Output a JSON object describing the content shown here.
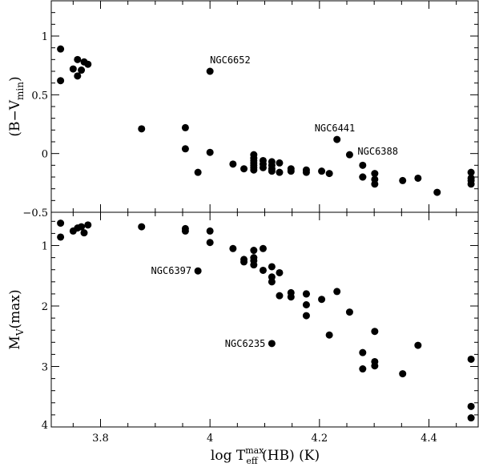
{
  "chart_data": [
    {
      "type": "scatter",
      "panel": "top",
      "xlim": [
        3.71,
        4.49
      ],
      "ylim": [
        -0.5,
        1.3
      ],
      "yticks": [
        -0.5,
        0,
        0.5,
        1
      ],
      "ytick_labels": [
        "−0.5",
        "0",
        "0.5",
        "1"
      ],
      "ylabel_parts": {
        "main": "(B−V",
        "sub": "min",
        "close": ")"
      },
      "grid": false,
      "series": [
        {
          "x": [
            3.727,
            3.727,
            3.75,
            3.758,
            3.758,
            3.765,
            3.77,
            3.777,
            3.875,
            3.955,
            3.955,
            3.978,
            4.0,
            4.0,
            4.042,
            4.062,
            4.08,
            4.08,
            4.08,
            4.08,
            4.08,
            4.08,
            4.08,
            4.097,
            4.097,
            4.097,
            4.113,
            4.113,
            4.113,
            4.113,
            4.127,
            4.127,
            4.148,
            4.148,
            4.176,
            4.176,
            4.204,
            4.218,
            4.232,
            4.255,
            4.279,
            4.279,
            4.279,
            4.301,
            4.301,
            4.301,
            4.352,
            4.38,
            4.415,
            4.477,
            4.477,
            4.477,
            4.477
          ],
          "y": [
            0.89,
            0.62,
            0.72,
            0.8,
            0.66,
            0.71,
            0.78,
            0.76,
            0.21,
            0.22,
            0.04,
            -0.16,
            0.7,
            0.01,
            -0.09,
            -0.13,
            -0.01,
            -0.04,
            -0.06,
            -0.08,
            -0.1,
            -0.12,
            -0.14,
            -0.06,
            -0.09,
            -0.12,
            -0.07,
            -0.1,
            -0.13,
            -0.15,
            -0.08,
            -0.16,
            -0.13,
            -0.15,
            -0.14,
            -0.16,
            -0.15,
            -0.17,
            0.12,
            -0.01,
            -0.1,
            -0.2,
            -0.2,
            -0.17,
            -0.22,
            -0.26,
            -0.23,
            -0.21,
            -0.33,
            -0.16,
            -0.21,
            -0.23,
            -0.26
          ]
        }
      ],
      "annotations": [
        {
          "text": "NGC6652",
          "x": 4.0,
          "y": 0.7
        },
        {
          "text": "NGC6441",
          "x": 4.232,
          "y": 0.12
        },
        {
          "text": "NGC6388",
          "x": 4.255,
          "y": -0.01
        }
      ]
    },
    {
      "type": "scatter",
      "panel": "bottom",
      "xlim": [
        3.71,
        4.49
      ],
      "ylim": [
        0.45,
        4.0
      ],
      "y_inverted": true,
      "yticks": [
        1,
        2,
        3,
        4
      ],
      "ytick_labels": [
        "1",
        "2",
        "3",
        "4"
      ],
      "xticks": [
        3.8,
        4.0,
        4.2,
        4.4
      ],
      "xtick_labels": [
        "3.8",
        "4",
        "4.2",
        "4.4"
      ],
      "ylabel_parts": {
        "main": "M",
        "sub": "V",
        "close": "(max)"
      },
      "xlabel_parts": {
        "pre": "log T",
        "sup": "max",
        "sub": "eff",
        "post": " (HB) (K)"
      },
      "grid": false,
      "series": [
        {
          "x": [
            3.727,
            3.727,
            3.75,
            3.758,
            3.765,
            3.77,
            3.777,
            3.875,
            3.955,
            3.955,
            3.978,
            4.0,
            4.0,
            4.042,
            4.062,
            4.062,
            4.08,
            4.08,
            4.08,
            4.08,
            4.097,
            4.097,
            4.113,
            4.113,
            4.113,
            4.113,
            4.127,
            4.127,
            4.148,
            4.148,
            4.176,
            4.176,
            4.176,
            4.176,
            4.204,
            4.218,
            4.232,
            4.255,
            4.279,
            4.279,
            4.301,
            4.301,
            4.301,
            4.352,
            4.38,
            4.477,
            4.477,
            4.477
          ],
          "y": [
            0.63,
            0.86,
            0.76,
            0.71,
            0.69,
            0.79,
            0.66,
            0.69,
            0.72,
            0.76,
            1.42,
            0.76,
            0.95,
            1.05,
            1.23,
            1.27,
            1.08,
            1.2,
            1.25,
            1.32,
            1.05,
            1.41,
            1.35,
            1.52,
            1.6,
            2.62,
            1.45,
            1.83,
            1.78,
            1.85,
            1.8,
            1.98,
            2.16,
            1.8,
            1.89,
            2.48,
            1.76,
            2.1,
            2.77,
            3.04,
            2.42,
            2.92,
            2.99,
            3.12,
            2.65,
            2.88,
            3.66,
            3.85
          ]
        }
      ],
      "annotations": [
        {
          "text": "NGC6397",
          "x": 3.978,
          "y": 1.42
        },
        {
          "text": "NGC6235",
          "x": 4.113,
          "y": 2.62
        }
      ]
    }
  ]
}
